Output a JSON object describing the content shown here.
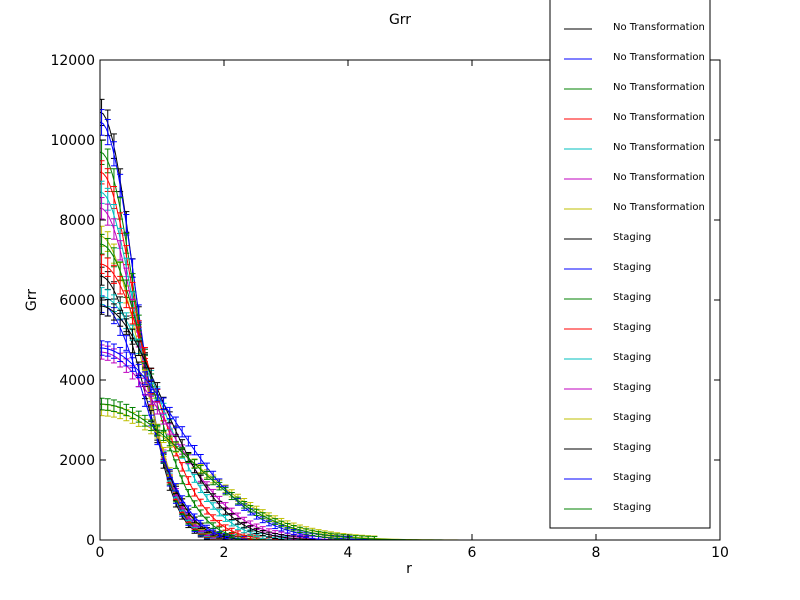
{
  "chart_data": {
    "type": "line",
    "title": "Grr",
    "xlabel": "r",
    "ylabel": "Grr",
    "xlim": [
      0,
      10
    ],
    "ylim": [
      0,
      12000
    ],
    "xticks": [
      "0",
      "2",
      "4",
      "6",
      "8",
      "10"
    ],
    "yticks": [
      "0",
      "2000",
      "4000",
      "6000",
      "8000",
      "10000",
      "12000"
    ],
    "grid": false,
    "legend_position": "top-right",
    "error_bars": true,
    "series": [
      {
        "name": "No Transformation",
        "color": "#000000",
        "peak": 10700,
        "width": 0.78,
        "shape": 4.4
      },
      {
        "name": "No Transformation",
        "color": "#0000ff",
        "peak": 10450,
        "width": 0.8,
        "shape": 4.2
      },
      {
        "name": "No Transformation",
        "color": "#008000",
        "peak": 9700,
        "width": 0.82,
        "shape": 4.0
      },
      {
        "name": "No Transformation",
        "color": "#ff0000",
        "peak": 9200,
        "width": 0.84,
        "shape": 3.9
      },
      {
        "name": "No Transformation",
        "color": "#00bfbf",
        "peak": 8700,
        "width": 0.86,
        "shape": 3.7
      },
      {
        "name": "No Transformation",
        "color": "#bf00bf",
        "peak": 8300,
        "width": 0.88,
        "shape": 3.6
      },
      {
        "name": "No Transformation",
        "color": "#bfbf00",
        "peak": 7600,
        "width": 0.92,
        "shape": 3.4
      },
      {
        "name": "Staging",
        "color": "#000000",
        "peak": 6600,
        "width": 0.95,
        "shape": 3.2
      },
      {
        "name": "Staging",
        "color": "#0000ff",
        "peak": 5900,
        "width": 1.0,
        "shape": 3.0
      },
      {
        "name": "Staging",
        "color": "#008000",
        "peak": 7400,
        "width": 1.05,
        "shape": 2.8
      },
      {
        "name": "Staging",
        "color": "#ff0000",
        "peak": 6900,
        "width": 1.15,
        "shape": 2.6
      },
      {
        "name": "Staging",
        "color": "#00bfbf",
        "peak": 6100,
        "width": 1.3,
        "shape": 2.4
      },
      {
        "name": "Staging",
        "color": "#bf00bf",
        "peak": 4700,
        "width": 1.55,
        "shape": 2.2
      },
      {
        "name": "Staging",
        "color": "#bfbf00",
        "peak": 3250,
        "width": 2.1,
        "shape": 2.0
      },
      {
        "name": "Staging",
        "color": "#000000",
        "peak": 5850,
        "width": 1.4,
        "shape": 2.3
      },
      {
        "name": "Staging",
        "color": "#0000ff",
        "peak": 4800,
        "width": 1.75,
        "shape": 2.1
      },
      {
        "name": "Staging",
        "color": "#008000",
        "peak": 3400,
        "width": 2.0,
        "shape": 2.0
      }
    ]
  }
}
